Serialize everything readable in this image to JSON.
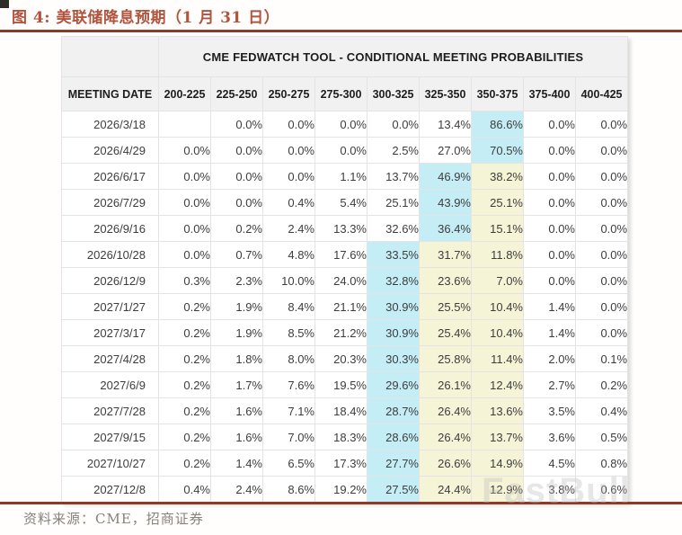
{
  "page": {
    "figure_title": "图 4:  美联储降息预期（1 月 31 日）",
    "source_note": "资料来源：CME，招商证券",
    "watermark": "FastBull"
  },
  "colors": {
    "title_color": "#b0543e",
    "rule_color": "#8e3a28",
    "header_bg": "#f1f1f1",
    "highlight_blue": "#c5edf5",
    "highlight_yellow": "#f6f4d6"
  },
  "table": {
    "title": "CME FEDWATCH TOOL - CONDITIONAL MEETING PROBABILITIES",
    "date_header": "MEETING DATE",
    "rate_headers": [
      "200-225",
      "225-250",
      "250-275",
      "275-300",
      "300-325",
      "325-350",
      "350-375",
      "375-400",
      "400-425"
    ],
    "rows": [
      {
        "date": "2026/3/18",
        "values": [
          "",
          "0.0%",
          "0.0%",
          "0.0%",
          "0.0%",
          "13.4%",
          "86.6%",
          "0.0%",
          "0.0%"
        ],
        "highlights": [
          "",
          "",
          "",
          "",
          "",
          "",
          "b",
          "",
          ""
        ]
      },
      {
        "date": "2026/4/29",
        "values": [
          "0.0%",
          "0.0%",
          "0.0%",
          "0.0%",
          "2.5%",
          "27.0%",
          "70.5%",
          "0.0%",
          "0.0%"
        ],
        "highlights": [
          "",
          "",
          "",
          "",
          "",
          "",
          "b",
          "",
          ""
        ]
      },
      {
        "date": "2026/6/17",
        "values": [
          "0.0%",
          "0.0%",
          "0.0%",
          "1.1%",
          "13.7%",
          "46.9%",
          "38.2%",
          "0.0%",
          "0.0%"
        ],
        "highlights": [
          "",
          "",
          "",
          "",
          "",
          "b",
          "y",
          "",
          ""
        ]
      },
      {
        "date": "2026/7/29",
        "values": [
          "0.0%",
          "0.0%",
          "0.4%",
          "5.4%",
          "25.1%",
          "43.9%",
          "25.1%",
          "0.0%",
          "0.0%"
        ],
        "highlights": [
          "",
          "",
          "",
          "",
          "",
          "b",
          "y",
          "",
          ""
        ]
      },
      {
        "date": "2026/9/16",
        "values": [
          "0.0%",
          "0.2%",
          "2.4%",
          "13.3%",
          "32.6%",
          "36.4%",
          "15.1%",
          "0.0%",
          "0.0%"
        ],
        "highlights": [
          "",
          "",
          "",
          "",
          "",
          "b",
          "y",
          "",
          ""
        ]
      },
      {
        "date": "2026/10/28",
        "values": [
          "0.0%",
          "0.7%",
          "4.8%",
          "17.6%",
          "33.5%",
          "31.7%",
          "11.8%",
          "0.0%",
          "0.0%"
        ],
        "highlights": [
          "",
          "",
          "",
          "",
          "b",
          "y",
          "y",
          "",
          ""
        ]
      },
      {
        "date": "2026/12/9",
        "values": [
          "0.3%",
          "2.3%",
          "10.0%",
          "24.0%",
          "32.8%",
          "23.6%",
          "7.0%",
          "0.0%",
          "0.0%"
        ],
        "highlights": [
          "",
          "",
          "",
          "",
          "b",
          "y",
          "y",
          "",
          ""
        ]
      },
      {
        "date": "2027/1/27",
        "values": [
          "0.2%",
          "1.9%",
          "8.4%",
          "21.1%",
          "30.9%",
          "25.5%",
          "10.4%",
          "1.4%",
          "0.0%"
        ],
        "highlights": [
          "",
          "",
          "",
          "",
          "b",
          "y",
          "y",
          "",
          ""
        ]
      },
      {
        "date": "2027/3/17",
        "values": [
          "0.2%",
          "1.9%",
          "8.5%",
          "21.2%",
          "30.9%",
          "25.4%",
          "10.4%",
          "1.4%",
          "0.0%"
        ],
        "highlights": [
          "",
          "",
          "",
          "",
          "b",
          "y",
          "y",
          "",
          ""
        ]
      },
      {
        "date": "2027/4/28",
        "values": [
          "0.2%",
          "1.8%",
          "8.0%",
          "20.3%",
          "30.3%",
          "25.8%",
          "11.4%",
          "2.0%",
          "0.1%"
        ],
        "highlights": [
          "",
          "",
          "",
          "",
          "b",
          "y",
          "y",
          "",
          ""
        ]
      },
      {
        "date": "2027/6/9",
        "values": [
          "0.2%",
          "1.7%",
          "7.6%",
          "19.5%",
          "29.6%",
          "26.1%",
          "12.4%",
          "2.7%",
          "0.2%"
        ],
        "highlights": [
          "",
          "",
          "",
          "",
          "b",
          "y",
          "y",
          "",
          ""
        ]
      },
      {
        "date": "2027/7/28",
        "values": [
          "0.2%",
          "1.6%",
          "7.1%",
          "18.4%",
          "28.7%",
          "26.4%",
          "13.6%",
          "3.5%",
          "0.4%"
        ],
        "highlights": [
          "",
          "",
          "",
          "",
          "b",
          "y",
          "y",
          "",
          ""
        ]
      },
      {
        "date": "2027/9/15",
        "values": [
          "0.2%",
          "1.6%",
          "7.0%",
          "18.3%",
          "28.6%",
          "26.4%",
          "13.7%",
          "3.6%",
          "0.5%"
        ],
        "highlights": [
          "",
          "",
          "",
          "",
          "b",
          "y",
          "y",
          "",
          ""
        ]
      },
      {
        "date": "2027/10/27",
        "values": [
          "0.2%",
          "1.4%",
          "6.5%",
          "17.3%",
          "27.7%",
          "26.6%",
          "14.9%",
          "4.5%",
          "0.8%"
        ],
        "highlights": [
          "",
          "",
          "",
          "",
          "b",
          "y",
          "y",
          "",
          ""
        ]
      },
      {
        "date": "2027/12/8",
        "values": [
          "0.4%",
          "2.4%",
          "8.6%",
          "19.2%",
          "27.5%",
          "24.4%",
          "12.9%",
          "3.8%",
          "0.6%"
        ],
        "highlights": [
          "",
          "",
          "",
          "",
          "b",
          "y",
          "y",
          "",
          ""
        ]
      }
    ]
  }
}
